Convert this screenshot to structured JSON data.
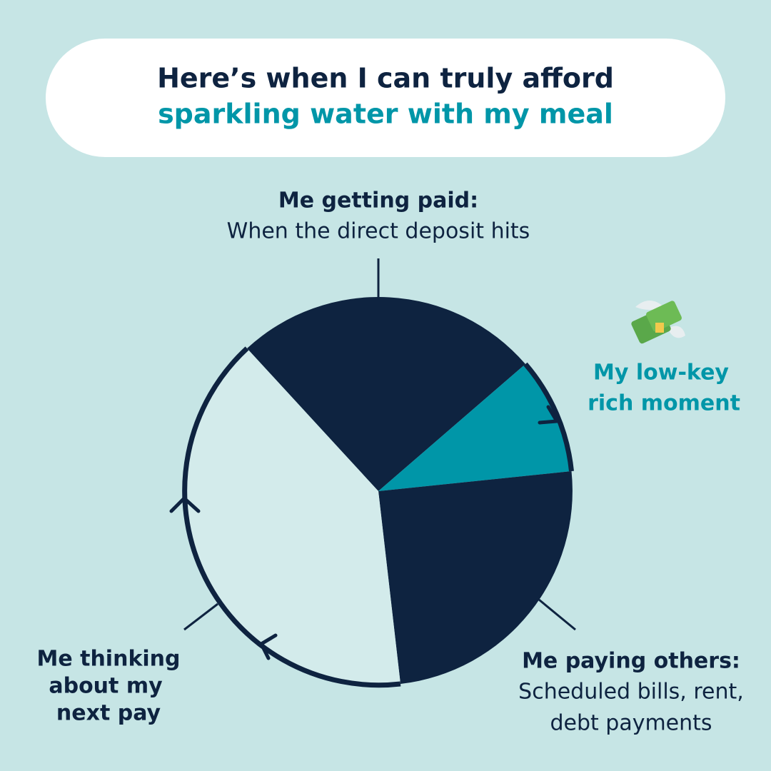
{
  "header": {
    "title_line1": "Here’s when I can truly afford",
    "title_line2": "sparkling water with my meal"
  },
  "labels": {
    "paid": {
      "title": "Me getting paid:",
      "text": "When the direct deposit hits"
    },
    "rich": {
      "line1": "My low-key",
      "line2": "rich moment"
    },
    "paying": {
      "title": "Me paying others:",
      "line1": "Scheduled bills, rent,",
      "line2": "debt payments"
    },
    "thinking": {
      "line1": "Me thinking",
      "line2": "about my",
      "line3": "next pay"
    }
  }
}
